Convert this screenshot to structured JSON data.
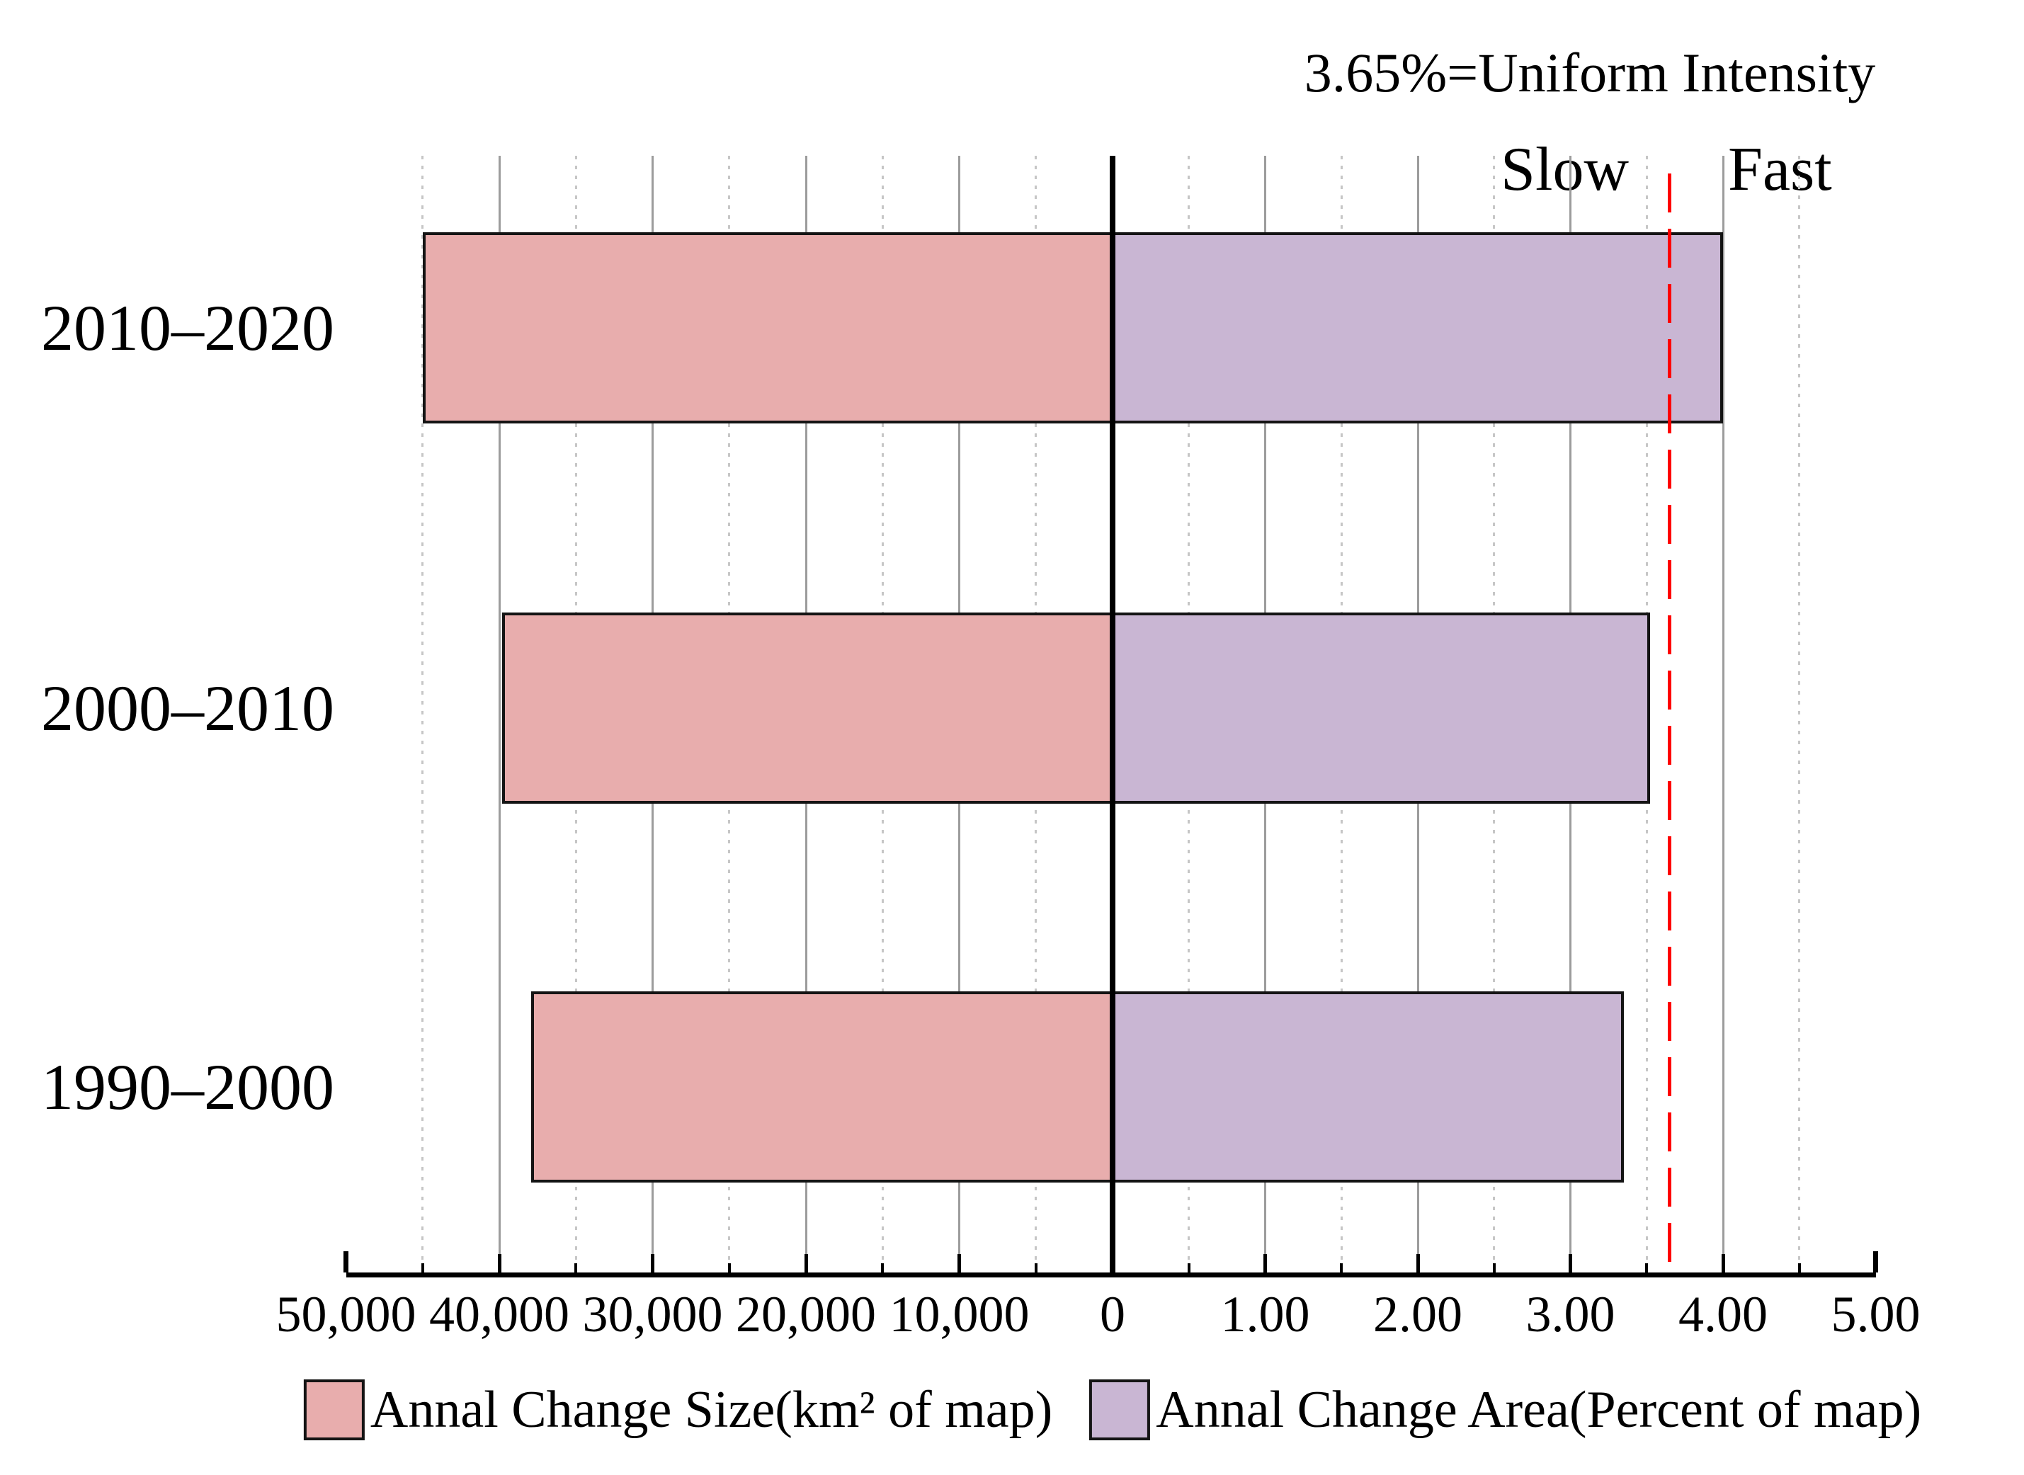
{
  "title": "3.65%=Uniform Intensity",
  "zone_labels": {
    "slow": "Slow",
    "fast": "Fast"
  },
  "chart_data": {
    "type": "bar",
    "subtype": "diverging-horizontal",
    "title": "3.65%=Uniform Intensity",
    "categories": [
      "2010–2020",
      "2000–2010",
      "1990–2000"
    ],
    "series": [
      {
        "name": "Annal Change Size(km² of map)",
        "axis": "left",
        "unit": "km²",
        "values": [
          45000,
          39800,
          37900
        ],
        "color": "#e8adad"
      },
      {
        "name": "Annal Change Area(Percent of map)",
        "axis": "right",
        "unit": "percent",
        "values": [
          4.0,
          3.52,
          3.35
        ],
        "color": "#c9b6d3"
      }
    ],
    "left_axis": {
      "direction": "increasing-leftward",
      "range": [
        0,
        50000
      ],
      "major_tick_step": 10000,
      "minor_tick_step": 5000,
      "tick_labels": [
        "50,000",
        "40,000",
        "30,000",
        "20,000",
        "10,000",
        "0"
      ]
    },
    "right_axis": {
      "direction": "increasing-rightward",
      "range": [
        0,
        5
      ],
      "major_tick_step": 1,
      "minor_tick_step": 0.5,
      "tick_labels": [
        "1.00",
        "2.00",
        "3.00",
        "4.00",
        "5.00"
      ]
    },
    "reference_line": {
      "value": 3.65,
      "label": "3.65%=Uniform Intensity",
      "color": "#fe0000",
      "style": "dashed"
    },
    "zone_labels": {
      "left_of_line": "Slow",
      "right_of_line": "Fast"
    },
    "grid": {
      "major": "solid-gray",
      "minor": "dotted-light-gray"
    },
    "legend_position": "bottom-center",
    "colors": {
      "size_bar": "#e8adad",
      "area_bar": "#c9b6d3",
      "bar_border": "#141414",
      "major_grid": "#9c9c9c",
      "minor_grid": "#c6c6c6",
      "reference": "#fe0000",
      "axis": "#000000"
    }
  }
}
